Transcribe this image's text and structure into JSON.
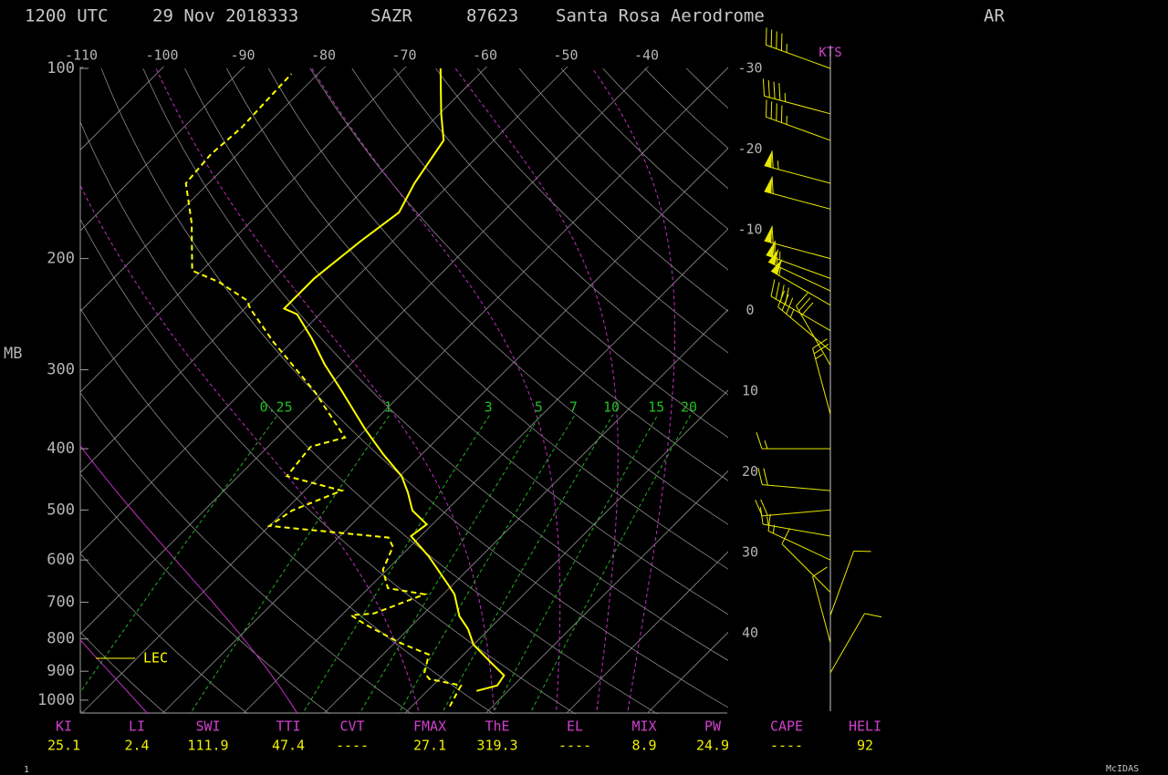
{
  "chart_data": {
    "type": "skewt",
    "time": "1200 UTC",
    "date": "29 Nov 2018333",
    "station": "SAZR",
    "station_number": "87623",
    "station_name": "Santa Rosa Aerodrome",
    "country": "AR",
    "y_label": "MB",
    "y_log": true,
    "ylim": [
      100,
      1048
    ],
    "yticks": [
      100,
      200,
      300,
      400,
      500,
      600,
      700,
      800,
      900,
      1000
    ],
    "isotherms": [
      -110,
      -100,
      -90,
      -80,
      -70,
      -60,
      -50,
      -40,
      -30,
      -20,
      -10,
      0,
      10,
      20,
      30,
      40
    ],
    "mixing_ratios": [
      0.25,
      1,
      3,
      5,
      7,
      10,
      15,
      20
    ],
    "series": [
      {
        "style": "solid",
        "color": "#ffff00",
        "pressure": [
          967,
          948,
          914,
          876,
          817,
          772,
          736,
          680,
          654,
          592,
          550,
          527,
          501,
          469,
          442,
          408,
          372,
          325,
          294,
          267,
          245,
          240,
          215,
          188,
          169,
          152,
          130,
          118,
          100
        ],
        "values": [
          16.1,
          18.0,
          17.6,
          14.7,
          10.0,
          7.4,
          4.7,
          1.4,
          -0.8,
          -6.5,
          -11.2,
          -10.7,
          -14.2,
          -17.0,
          -19.8,
          -24.8,
          -30.2,
          -37.6,
          -43.2,
          -48.1,
          -52.8,
          -55.1,
          -55.1,
          -54.0,
          -52.8,
          -54.5,
          -56.2,
          -59.8,
          -65.5
        ]
      },
      {
        "style": "dashed",
        "color": "#ffff00",
        "pressure": [
          1023,
          948,
          926,
          905,
          847,
          811,
          759,
          734,
          729,
          680,
          665,
          622,
          572,
          553,
          530,
          501,
          466,
          442,
          397,
          384,
          325,
          271,
          240,
          233,
          218,
          209,
          176,
          152,
          137,
          124,
          102
        ],
        "values": [
          14.7,
          13.5,
          8.8,
          7.4,
          5.7,
          0.6,
          -5.9,
          -8.8,
          -6.2,
          -2.3,
          -7.6,
          -10.5,
          -12.1,
          -13.8,
          -30.0,
          -29.1,
          -25.4,
          -34.0,
          -34.7,
          -31.6,
          -41.0,
          -52.3,
          -59.3,
          -60.7,
          -66.4,
          -71.2,
          -77.1,
          -82.8,
          -83.3,
          -82.8,
          -83.3
        ]
      }
    ],
    "legend": {
      "label": "LEC",
      "color": "#ffff00"
    },
    "winds": {
      "unit": "KTS",
      "pressure": [
        100,
        118,
        130,
        152,
        167,
        200,
        215,
        225,
        237,
        260,
        280,
        295,
        353,
        400,
        466,
        500,
        550,
        600,
        675,
        734,
        811,
        905
      ],
      "direction": [
        290,
        285,
        290,
        285,
        285,
        285,
        290,
        295,
        300,
        300,
        310,
        330,
        345,
        270,
        275,
        265,
        280,
        295,
        315,
        20,
        345,
        30
      ],
      "speed": [
        45,
        45,
        45,
        65,
        60,
        60,
        65,
        55,
        55,
        40,
        35,
        30,
        25,
        15,
        20,
        20,
        15,
        15,
        10,
        10,
        10,
        10
      ]
    },
    "indices": {
      "labels": [
        "KI",
        "LI",
        "SWI",
        "TTI",
        "CVT",
        "FMAX",
        "ThE",
        "EL",
        "MIX",
        "PW",
        "CAPE",
        "HELI"
      ],
      "values": [
        25.1,
        2.4,
        111.9,
        47.4,
        "----",
        27.1,
        319.3,
        "----",
        8.9,
        24.9,
        "----",
        92
      ]
    },
    "footer_left": "1",
    "footer_right": "McIDAS"
  }
}
